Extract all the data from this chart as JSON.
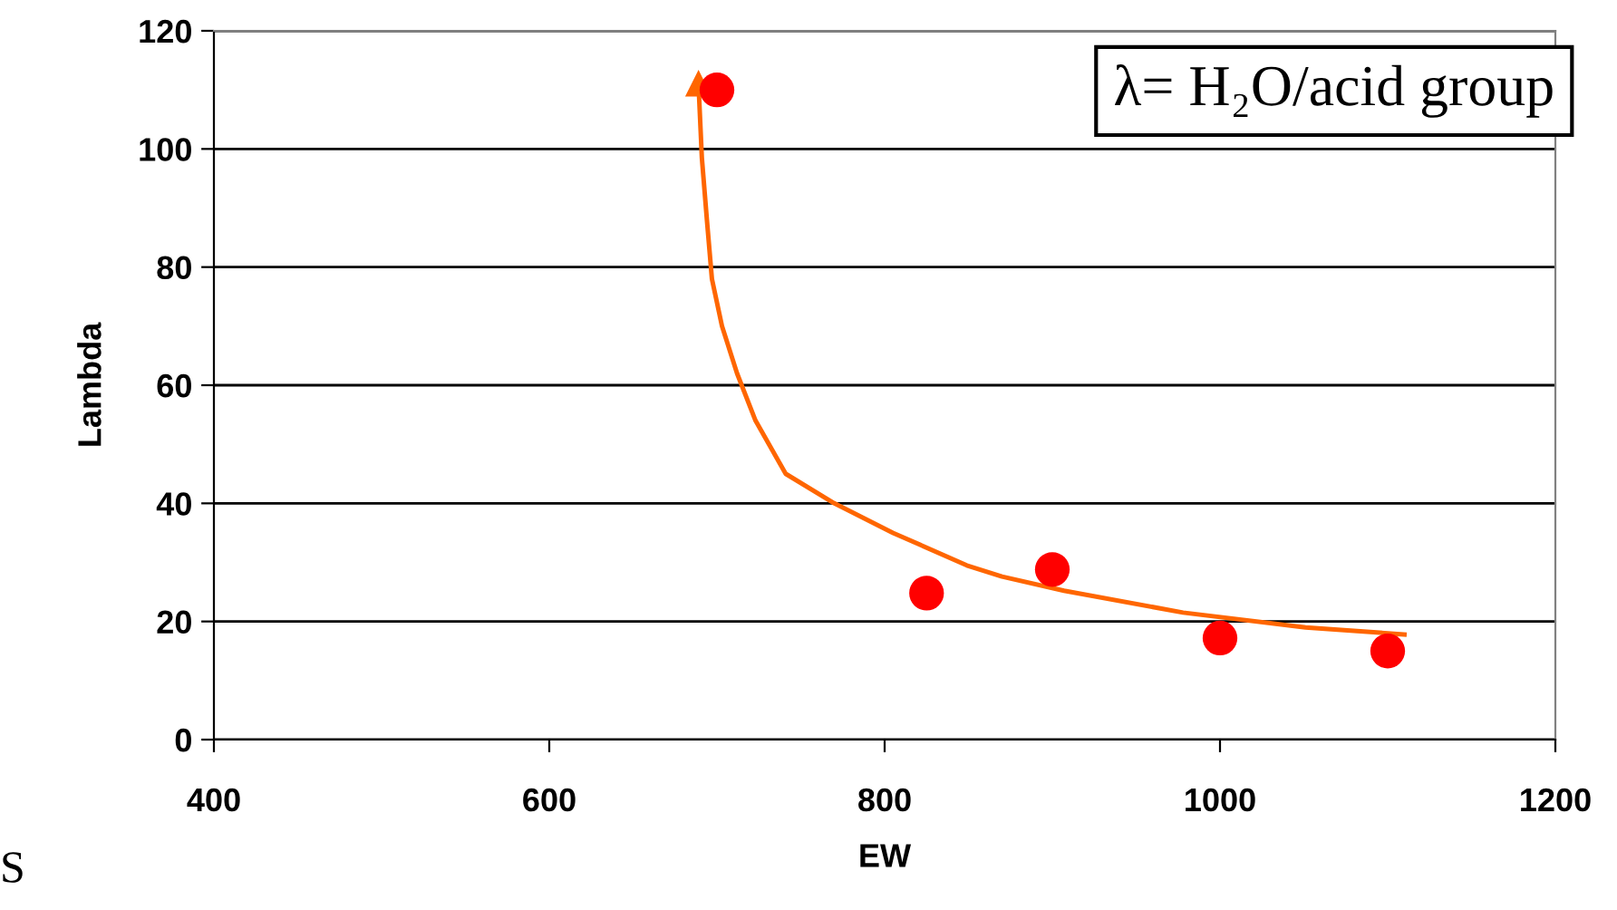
{
  "chart_data": {
    "type": "scatter",
    "xlabel": "EW",
    "ylabel": "Lambda",
    "xlim": [
      400,
      1200
    ],
    "xticks": [
      400,
      600,
      800,
      1000,
      1200
    ],
    "ylim": [
      0,
      120
    ],
    "yticks": [
      0,
      20,
      40,
      60,
      80,
      100,
      120
    ],
    "grid": "y",
    "series": [
      {
        "color": "#ff0000",
        "marker": "circle",
        "x": [
          700,
          825,
          900,
          1000,
          1100
        ],
        "values": [
          110,
          24.8,
          28.8,
          17.2,
          15
        ]
      },
      {
        "type": "line",
        "color": "#ff6600",
        "line_style": "solid",
        "x": [
          689,
          691,
          694,
          697,
          703,
          712,
          723,
          741,
          770,
          805,
          849,
          870,
          907,
          978,
          1051,
          1110
        ],
        "values": [
          111,
          98.5,
          88,
          78,
          70,
          62,
          54,
          45,
          40,
          35,
          29.5,
          27.6,
          25.2,
          21.5,
          19,
          17.8
        ]
      }
    ],
    "annotations": [
      "λ= H₂O/acid group",
      "S"
    ]
  }
}
